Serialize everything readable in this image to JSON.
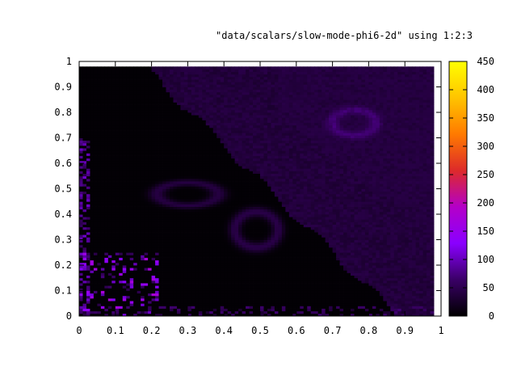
{
  "chart_data": {
    "type": "heatmap",
    "title": "\"data/scalars/slow-mode-phi6-2d\" using 1:2:3",
    "xlabel": "",
    "ylabel": "",
    "xlim": [
      0,
      1
    ],
    "ylim": [
      0,
      1
    ],
    "x_ticks": [
      "0",
      "0.1",
      "0.2",
      "0.3",
      "0.4",
      "0.5",
      "0.6",
      "0.7",
      "0.8",
      "0.9",
      "1"
    ],
    "y_ticks": [
      "0",
      "0.1",
      "0.2",
      "0.3",
      "0.4",
      "0.5",
      "0.6",
      "0.7",
      "0.8",
      "0.9",
      "1"
    ],
    "colorbar": {
      "range": [
        0,
        450
      ],
      "ticks": [
        "0",
        "50",
        "100",
        "150",
        "200",
        "250",
        "300",
        "350",
        "400",
        "450"
      ],
      "palette": [
        "#000000",
        "#3a0066",
        "#8a00ff",
        "#b400c8",
        "#dd2a2a",
        "#ff7a00",
        "#ffc400",
        "#ffff00"
      ]
    },
    "data_extent": {
      "x": [
        0,
        0.98
      ],
      "y": [
        0,
        0.98
      ]
    },
    "features": [
      {
        "region": "upper-right background",
        "approx_value": 40
      },
      {
        "region": "ring near (0.30, 0.48)",
        "approx_value": 35
      },
      {
        "region": "ring near (0.49, 0.34)",
        "approx_value": 40
      },
      {
        "region": "ring near (0.77, 0.76)",
        "approx_value": 35
      },
      {
        "region": "small hot spots near (0.02-0.20, 0.0-0.25)",
        "approx_value": 130
      },
      {
        "region": "main dark body",
        "approx_value": 3
      }
    ]
  }
}
